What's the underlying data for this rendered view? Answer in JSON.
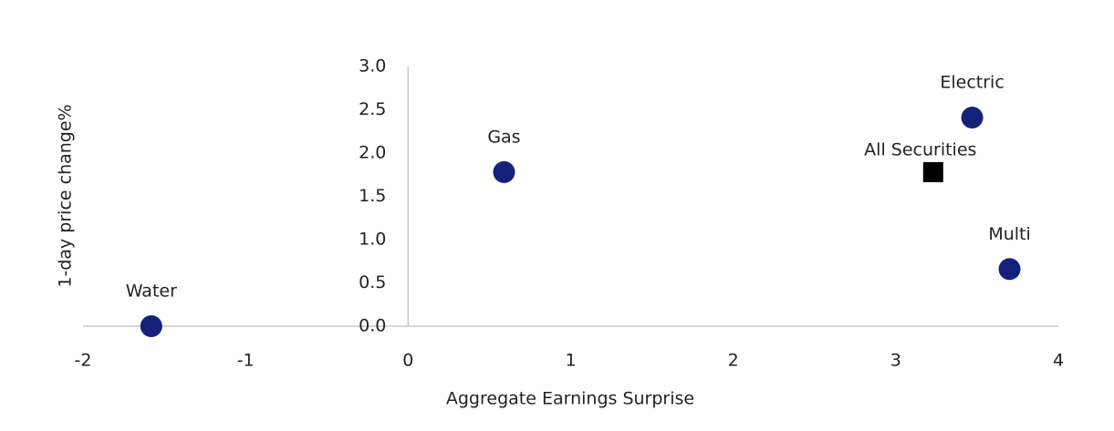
{
  "chart_data": {
    "type": "scatter",
    "x_label": "Aggregate Earnings Surprise",
    "y_label": "1-day price change%",
    "xlim": [
      -2,
      4
    ],
    "xticks": [
      -2,
      -1,
      0,
      1,
      2,
      3,
      4
    ],
    "ylim": [
      0,
      3
    ],
    "yticks": [
      {
        "value": 0,
        "label": "0.0"
      },
      0.5,
      {
        "value": 1,
        "label": "1.0"
      },
      1.5,
      {
        "value": 2,
        "label": "2.0"
      },
      2.5,
      {
        "value": 3,
        "label": "3.0"
      }
    ],
    "points": [
      {
        "label": "Water",
        "x": -1.58,
        "y": 0,
        "color": "#14217a",
        "marker": "circle"
      },
      {
        "label": "Gas",
        "x": 0.59,
        "y": 1.78,
        "color": "#14217a",
        "marker": "circle"
      },
      {
        "label": "Electric",
        "x": 3.47,
        "y": 2.41,
        "color": "#14217a",
        "marker": "circle"
      },
      {
        "label": "All Securities",
        "x": 3.23,
        "y": 1.78,
        "color": "#000000",
        "marker": "square"
      },
      {
        "label": "Multi",
        "x": 3.7,
        "y": 0.66,
        "color": "#14217a",
        "marker": "circle"
      }
    ]
  }
}
